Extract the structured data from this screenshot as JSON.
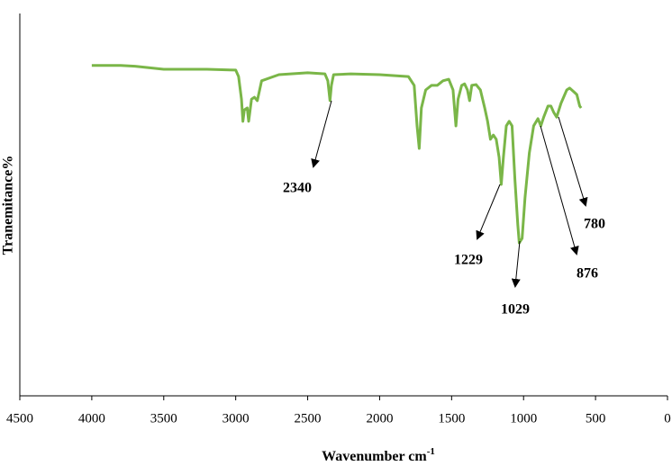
{
  "chart_data": {
    "type": "line",
    "xlabel": {
      "text": "Wavenumber cm",
      "superscript": "-1"
    },
    "ylabel": "Tranemitance%",
    "x": [
      4000,
      3800,
      3700,
      3500,
      3200,
      3000,
      2980,
      2960,
      2950,
      2940,
      2920,
      2910,
      2890,
      2870,
      2850,
      2820,
      2700,
      2500,
      2380,
      2360,
      2345,
      2335,
      2320,
      2200,
      2000,
      1800,
      1760,
      1740,
      1725,
      1710,
      1680,
      1640,
      1600,
      1560,
      1520,
      1490,
      1470,
      1455,
      1430,
      1410,
      1390,
      1375,
      1360,
      1330,
      1300,
      1270,
      1250,
      1230,
      1210,
      1190,
      1170,
      1155,
      1140,
      1120,
      1100,
      1080,
      1060,
      1040,
      1030,
      1010,
      990,
      960,
      930,
      900,
      880,
      860,
      830,
      810,
      790,
      770,
      740,
      700,
      680,
      650,
      630,
      610,
      600
    ],
    "values": [
      86.4,
      86.4,
      86.2,
      85.4,
      85.4,
      85.2,
      83.5,
      77.6,
      71.8,
      74.8,
      75.3,
      71.8,
      77.6,
      78.1,
      77.2,
      82.4,
      84.0,
      84.5,
      84.2,
      82.4,
      77.2,
      81.2,
      84.0,
      84.2,
      84.0,
      83.5,
      81.2,
      70.6,
      64.7,
      75.3,
      80.0,
      81.2,
      81.2,
      82.4,
      82.8,
      80.0,
      70.6,
      77.6,
      81.2,
      81.6,
      80.0,
      77.2,
      81.2,
      81.4,
      80.0,
      75.3,
      71.8,
      67.1,
      68.2,
      67.1,
      62.4,
      55.3,
      62.4,
      70.6,
      71.8,
      70.6,
      56.5,
      44.7,
      40.0,
      41.2,
      51.8,
      63.5,
      70.6,
      72.5,
      70.6,
      72.9,
      75.8,
      75.8,
      74.1,
      72.9,
      76.5,
      80.0,
      80.5,
      79.5,
      78.8,
      75.8,
      75.3
    ],
    "color": "#7ab648",
    "xlim": [
      4500,
      0
    ],
    "xticks": [
      4500,
      4000,
      3500,
      3000,
      2500,
      2000,
      1500,
      1000,
      500,
      0
    ],
    "ylim": [
      0,
      100
    ],
    "annotations": [
      2340,
      1229,
      1029,
      876,
      780
    ]
  }
}
